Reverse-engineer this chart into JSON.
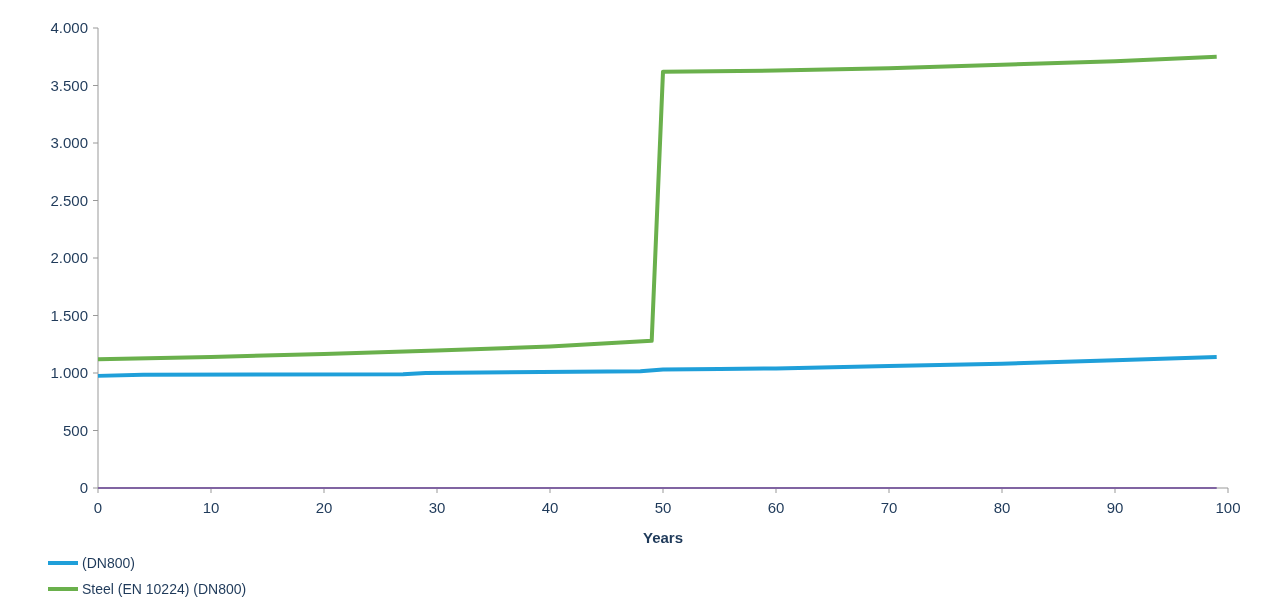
{
  "chart_data": {
    "type": "line",
    "xlabel": "Years",
    "xlim": [
      0,
      100
    ],
    "xticks": [
      0,
      10,
      20,
      30,
      40,
      50,
      60,
      70,
      80,
      90,
      100
    ],
    "ylim": [
      0,
      4000
    ],
    "yticks": [
      {
        "value": 0,
        "label": "0"
      },
      {
        "value": 500,
        "label": "500"
      },
      {
        "value": 1000,
        "label": "1.000"
      },
      {
        "value": 1500,
        "label": "1.500"
      },
      {
        "value": 2000,
        "label": "2.000"
      },
      {
        "value": 2500,
        "label": "2.500"
      },
      {
        "value": 3000,
        "label": "3.000"
      },
      {
        "value": 3500,
        "label": "3.500"
      },
      {
        "value": 4000,
        "label": "4.000"
      }
    ],
    "grid": false,
    "legend": "bottom left",
    "line_style": "solid",
    "marker": "none",
    "series": [
      {
        "name": "(DN800)",
        "color": "#1f9fd9",
        "x": [
          0,
          4,
          27,
          29,
          48,
          50,
          55,
          60,
          65,
          70,
          80,
          90,
          99
        ],
        "values": [
          975,
          985,
          990,
          1000,
          1015,
          1030,
          1035,
          1040,
          1050,
          1060,
          1080,
          1110,
          1140
        ]
      },
      {
        "name": "Steel (EN 10224) (DN800)",
        "color": "#6ab04c",
        "x": [
          0,
          10,
          20,
          30,
          40,
          49,
          50,
          60,
          70,
          80,
          90,
          99
        ],
        "values": [
          1120,
          1140,
          1165,
          1195,
          1230,
          1280,
          3620,
          3630,
          3650,
          3680,
          3710,
          3750
        ]
      },
      {
        "color": "#8064a2",
        "x": [
          0,
          99
        ],
        "values": [
          0,
          0
        ]
      }
    ]
  }
}
